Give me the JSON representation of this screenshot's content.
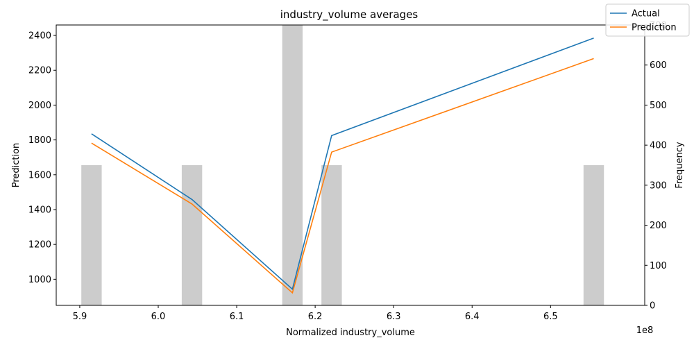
{
  "chart_data": {
    "type": "line",
    "title": "industry_volume averages",
    "xlabel": "Normalized industry_volume",
    "ylabel": "Prediction",
    "y2label": "Frequency",
    "x_offset_label": "1e8",
    "xlim": [
      5.87,
      6.62
    ],
    "ylim": [
      850,
      2460
    ],
    "y2lim": [
      0,
      700
    ],
    "x_ticks": [
      {
        "value": 5.9,
        "label": "5.9"
      },
      {
        "value": 6.0,
        "label": "6.0"
      },
      {
        "value": 6.1,
        "label": "6.1"
      },
      {
        "value": 6.2,
        "label": "6.2"
      },
      {
        "value": 6.3,
        "label": "6.3"
      },
      {
        "value": 6.4,
        "label": "6.4"
      },
      {
        "value": 6.5,
        "label": "6.5"
      }
    ],
    "y_ticks": [
      {
        "value": 1000,
        "label": "1000"
      },
      {
        "value": 1200,
        "label": "1200"
      },
      {
        "value": 1400,
        "label": "1400"
      },
      {
        "value": 1600,
        "label": "1600"
      },
      {
        "value": 1800,
        "label": "1800"
      },
      {
        "value": 2000,
        "label": "2000"
      },
      {
        "value": 2200,
        "label": "2200"
      },
      {
        "value": 2400,
        "label": "2400"
      }
    ],
    "y2_ticks": [
      {
        "value": 0,
        "label": "0"
      },
      {
        "value": 100,
        "label": "100"
      },
      {
        "value": 200,
        "label": "200"
      },
      {
        "value": 300,
        "label": "300"
      },
      {
        "value": 400,
        "label": "400"
      },
      {
        "value": 500,
        "label": "500"
      },
      {
        "value": 600,
        "label": "600"
      },
      {
        "value": 700,
        "label": "700"
      }
    ],
    "series": [
      {
        "name": "Actual",
        "color": "#1f77b4",
        "x": [
          5.915,
          6.043,
          6.171,
          6.221,
          6.555
        ],
        "values": [
          1835,
          1458,
          943,
          1825,
          2385
        ]
      },
      {
        "name": "Prediction",
        "color": "#ff7f0e",
        "x": [
          5.915,
          6.043,
          6.171,
          6.221,
          6.555
        ],
        "values": [
          1782,
          1432,
          922,
          1730,
          2267
        ]
      }
    ],
    "histogram": {
      "color": "#cccccc",
      "bar_width": 0.026,
      "x": [
        5.915,
        6.043,
        6.171,
        6.221,
        6.555
      ],
      "values": [
        350,
        350,
        700,
        350,
        350
      ]
    },
    "legend": {
      "position": "top-right"
    }
  }
}
